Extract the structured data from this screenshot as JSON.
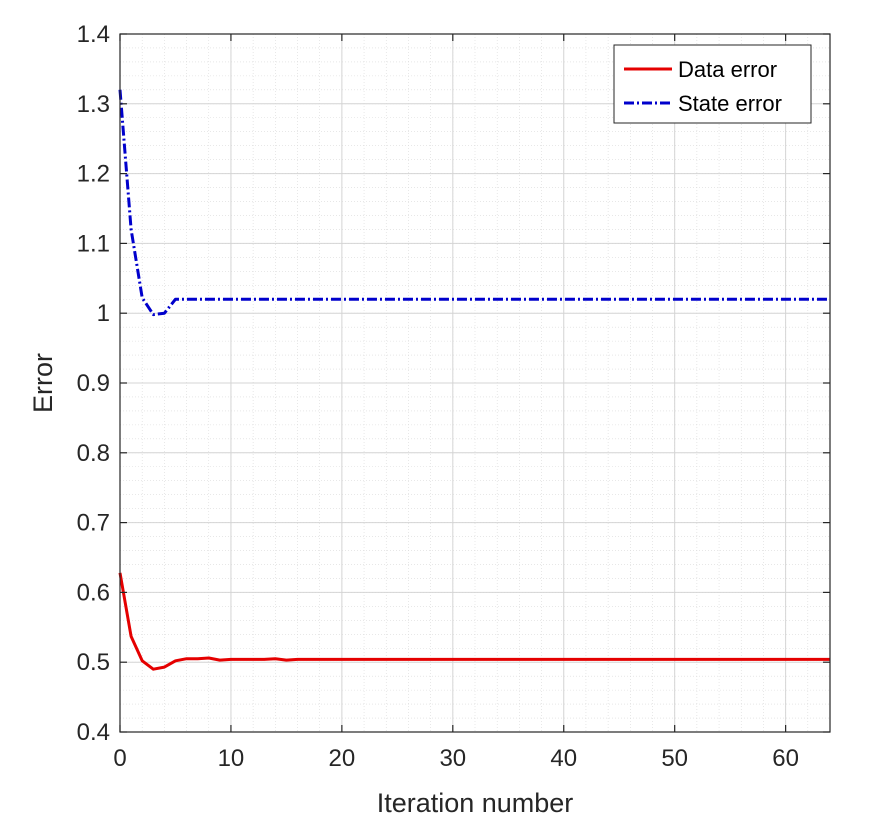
{
  "chart_data": {
    "type": "line",
    "xlabel": "Iteration number",
    "ylabel": "Error",
    "xlim": [
      0,
      64
    ],
    "ylim": [
      0.4,
      1.4
    ],
    "xticks": [
      0,
      10,
      20,
      30,
      40,
      50,
      60
    ],
    "yticks": [
      0.4,
      0.5,
      0.6,
      0.7,
      0.8,
      0.9,
      1.0,
      1.1,
      1.2,
      1.3,
      1.4
    ],
    "xtick_labels": [
      "0",
      "10",
      "20",
      "30",
      "40",
      "50",
      "60"
    ],
    "ytick_labels": [
      "0.4",
      "0.5",
      "0.6",
      "0.7",
      "0.8",
      "0.9",
      "1",
      "1.1",
      "1.2",
      "1.3",
      "1.4"
    ],
    "grid": true,
    "minor_grid": true,
    "legend_position": "top-right",
    "series": [
      {
        "name": "Data error",
        "color": "#e50000",
        "style": "solid",
        "x": [
          0,
          1,
          2,
          3,
          4,
          5,
          6,
          7,
          8,
          9,
          10,
          11,
          12,
          13,
          14,
          15,
          16,
          17,
          18,
          19,
          20,
          25,
          30,
          35,
          40,
          45,
          50,
          55,
          60,
          64
        ],
        "y": [
          0.628,
          0.537,
          0.502,
          0.49,
          0.493,
          0.502,
          0.505,
          0.505,
          0.506,
          0.503,
          0.504,
          0.504,
          0.504,
          0.504,
          0.505,
          0.503,
          0.504,
          0.504,
          0.504,
          0.504,
          0.504,
          0.504,
          0.504,
          0.504,
          0.504,
          0.504,
          0.504,
          0.504,
          0.504,
          0.504
        ]
      },
      {
        "name": "State error",
        "color": "#0000cc",
        "style": "dashdot",
        "x": [
          0,
          1,
          2,
          3,
          4,
          5,
          6,
          10,
          20,
          30,
          40,
          50,
          60,
          64
        ],
        "y": [
          1.32,
          1.12,
          1.022,
          0.998,
          1.0,
          1.02,
          1.02,
          1.02,
          1.02,
          1.02,
          1.02,
          1.02,
          1.02,
          1.02
        ]
      }
    ]
  }
}
